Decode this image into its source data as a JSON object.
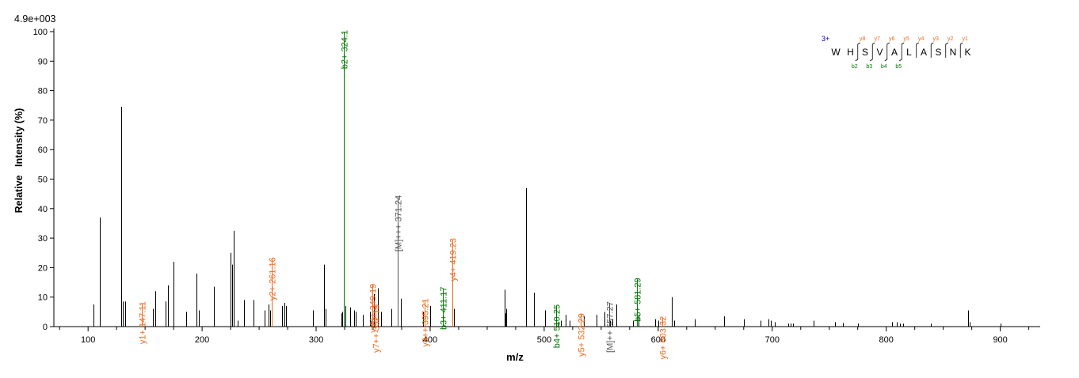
{
  "chart_data": {
    "type": "bar",
    "scale_label": "4.9e+003",
    "xlabel": "m/z",
    "ylabel": "Relative   Intensity (%)",
    "xlim": [
      70,
      935
    ],
    "ylim": [
      0,
      100
    ],
    "x_ticks": [
      100,
      200,
      300,
      400,
      500,
      600,
      700,
      800,
      900
    ],
    "y_ticks": [
      0,
      10,
      20,
      30,
      40,
      50,
      60,
      70,
      80,
      90,
      100
    ],
    "colors": {
      "b_ion": "#007700",
      "y_ion": "#ee6a1e",
      "precursor": "#555555",
      "peak": "#000000",
      "seq_charge": "#0000cc"
    },
    "annotated_peaks": [
      {
        "label": "y1+ 147.11",
        "x": 147.11,
        "y": 8,
        "ion": "y"
      },
      {
        "label": "y2+ 261.16",
        "x": 261.16,
        "y": 23,
        "ion": "y"
      },
      {
        "label": "b2+ 324.1",
        "x": 324.1,
        "y": 100,
        "ion": "b"
      },
      {
        "label": "y(3)+ 349.19",
        "x": 349.19,
        "y": 14,
        "ion": "y"
      },
      {
        "label": "y7++ 352.19",
        "x": 352.19,
        "y": 7,
        "ion": "y"
      },
      {
        "label": "[M]+++ 371.24",
        "x": 371.24,
        "y": 44,
        "ion": "precursor"
      },
      {
        "label": "y8++ 395.21",
        "x": 395.21,
        "y": 9,
        "ion": "y"
      },
      {
        "label": "b3+ 411.17",
        "x": 411.17,
        "y": 13,
        "ion": "b"
      },
      {
        "label": "y4+ 419.23",
        "x": 419.23,
        "y": 29.5,
        "ion": "y"
      },
      {
        "label": "b4+ 510.25",
        "x": 510.25,
        "y": 7,
        "ion": "b"
      },
      {
        "label": "y5+ 532.29",
        "x": 532.29,
        "y": 4,
        "ion": "y"
      },
      {
        "label": "[M]++ 557.27",
        "x": 557.27,
        "y": 8,
        "ion": "precursor"
      },
      {
        "label": "b5+ 581.29",
        "x": 581.29,
        "y": 16,
        "ion": "b"
      },
      {
        "label": "y6+ 603.32",
        "x": 603.32,
        "y": 3,
        "ion": "y"
      }
    ],
    "unlabeled_peaks": [
      {
        "x": 104.5,
        "y": 7.5
      },
      {
        "x": 110,
        "y": 37
      },
      {
        "x": 129,
        "y": 74.5
      },
      {
        "x": 130.5,
        "y": 8.5
      },
      {
        "x": 132.5,
        "y": 8.5
      },
      {
        "x": 157,
        "y": 6
      },
      {
        "x": 159,
        "y": 12
      },
      {
        "x": 168,
        "y": 8.5
      },
      {
        "x": 170,
        "y": 14
      },
      {
        "x": 175,
        "y": 22
      },
      {
        "x": 186,
        "y": 5
      },
      {
        "x": 195,
        "y": 18
      },
      {
        "x": 197,
        "y": 5.5
      },
      {
        "x": 210,
        "y": 13.5
      },
      {
        "x": 225,
        "y": 25
      },
      {
        "x": 226,
        "y": 21
      },
      {
        "x": 227.5,
        "y": 32.5
      },
      {
        "x": 231,
        "y": 2
      },
      {
        "x": 237,
        "y": 9
      },
      {
        "x": 245,
        "y": 9
      },
      {
        "x": 255,
        "y": 5.5
      },
      {
        "x": 258,
        "y": 7.5
      },
      {
        "x": 259.5,
        "y": 5.5
      },
      {
        "x": 270,
        "y": 7
      },
      {
        "x": 272,
        "y": 8
      },
      {
        "x": 273.5,
        "y": 7
      },
      {
        "x": 297,
        "y": 5.5
      },
      {
        "x": 307,
        "y": 21
      },
      {
        "x": 308,
        "y": 6
      },
      {
        "x": 322,
        "y": 4.5
      },
      {
        "x": 323,
        "y": 5
      },
      {
        "x": 325.5,
        "y": 7
      },
      {
        "x": 330,
        "y": 6.5
      },
      {
        "x": 333,
        "y": 5.5
      },
      {
        "x": 335,
        "y": 5
      },
      {
        "x": 341,
        "y": 4
      },
      {
        "x": 347,
        "y": 5
      },
      {
        "x": 348,
        "y": 2
      },
      {
        "x": 350.5,
        "y": 11
      },
      {
        "x": 354.5,
        "y": 13
      },
      {
        "x": 357,
        "y": 5
      },
      {
        "x": 366,
        "y": 6
      },
      {
        "x": 374,
        "y": 9.5
      },
      {
        "x": 393.5,
        "y": 5
      },
      {
        "x": 400,
        "y": 7
      },
      {
        "x": 421,
        "y": 6
      },
      {
        "x": 465.5,
        "y": 12.5
      },
      {
        "x": 466,
        "y": 4.5
      },
      {
        "x": 467,
        "y": 6
      },
      {
        "x": 484,
        "y": 47
      },
      {
        "x": 491,
        "y": 11.5
      },
      {
        "x": 501,
        "y": 5.5
      },
      {
        "x": 512,
        "y": 1.5
      },
      {
        "x": 515,
        "y": 2
      },
      {
        "x": 519,
        "y": 4
      },
      {
        "x": 522,
        "y": 2
      },
      {
        "x": 535,
        "y": 3.5
      },
      {
        "x": 546,
        "y": 4
      },
      {
        "x": 553,
        "y": 5
      },
      {
        "x": 558,
        "y": 2
      },
      {
        "x": 560,
        "y": 2.5
      },
      {
        "x": 563,
        "y": 7.5
      },
      {
        "x": 578,
        "y": 2
      },
      {
        "x": 583,
        "y": 4
      },
      {
        "x": 597,
        "y": 2.5
      },
      {
        "x": 600,
        "y": 2
      },
      {
        "x": 612,
        "y": 10
      },
      {
        "x": 614,
        "y": 2
      },
      {
        "x": 632,
        "y": 2.5
      },
      {
        "x": 658,
        "y": 3.5
      },
      {
        "x": 675,
        "y": 2.5
      },
      {
        "x": 690,
        "y": 2
      },
      {
        "x": 697,
        "y": 2.5
      },
      {
        "x": 699,
        "y": 2
      },
      {
        "x": 702,
        "y": 1.5
      },
      {
        "x": 714,
        "y": 1
      },
      {
        "x": 716,
        "y": 1
      },
      {
        "x": 718,
        "y": 1
      },
      {
        "x": 736,
        "y": 2
      },
      {
        "x": 755,
        "y": 1.5
      },
      {
        "x": 762,
        "y": 1.2
      },
      {
        "x": 775,
        "y": 1
      },
      {
        "x": 805,
        "y": 1.5
      },
      {
        "x": 809,
        "y": 1.5
      },
      {
        "x": 812,
        "y": 1
      },
      {
        "x": 815,
        "y": 1
      },
      {
        "x": 839,
        "y": 1
      },
      {
        "x": 872,
        "y": 5.5
      },
      {
        "x": 873.5,
        "y": 1.5
      },
      {
        "x": 900,
        "y": 1
      }
    ],
    "sequence": {
      "charge": "3+",
      "residues": [
        "W",
        "H",
        "S",
        "V",
        "A",
        "L",
        "A",
        "S",
        "N",
        "K"
      ],
      "y_ions": [
        "y8",
        "y7",
        "y6",
        "y5",
        "y4",
        "y3",
        "y2",
        "y1"
      ],
      "b_ions": [
        "b2",
        "b3",
        "b4",
        "b5"
      ]
    }
  }
}
